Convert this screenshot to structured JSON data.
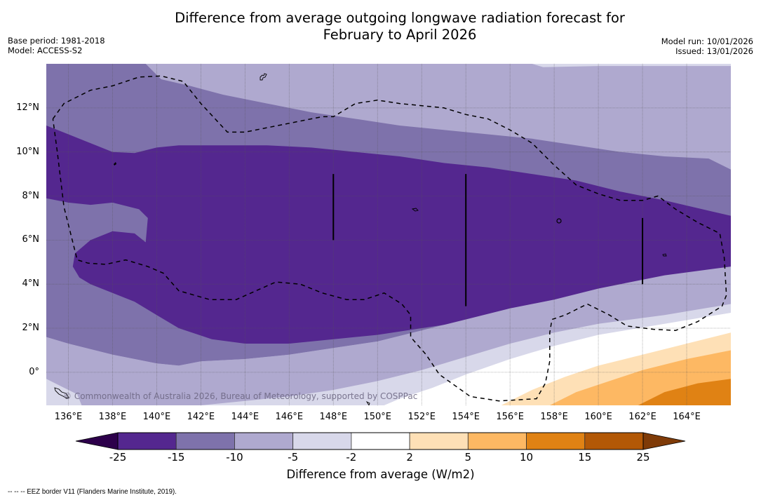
{
  "header": {
    "title_line1": "Difference from average outgoing longwave radiation forecast for",
    "title_line2": "February to April 2026",
    "base_period": "Base period: 1981-2018",
    "model": "Model: ACCESS-S2",
    "model_run": "Model run: 10/01/2026",
    "issued": "Issued: 13/01/2026"
  },
  "map": {
    "lon_range": [
      135.0,
      166.0
    ],
    "lat_range": [
      -1.5,
      14.0
    ],
    "lat_ticks": [
      {
        "value": 12,
        "label": "12°N"
      },
      {
        "value": 10,
        "label": "10°N"
      },
      {
        "value": 8,
        "label": "8°N"
      },
      {
        "value": 6,
        "label": "6°N"
      },
      {
        "value": 4,
        "label": "4°N"
      },
      {
        "value": 2,
        "label": "2°N"
      },
      {
        "value": 0,
        "label": "0°"
      }
    ],
    "lon_ticks": [
      {
        "value": 136,
        "label": "136°E"
      },
      {
        "value": 138,
        "label": "138°E"
      },
      {
        "value": 140,
        "label": "140°E"
      },
      {
        "value": 142,
        "label": "142°E"
      },
      {
        "value": 144,
        "label": "144°E"
      },
      {
        "value": 146,
        "label": "146°E"
      },
      {
        "value": 148,
        "label": "148°E"
      },
      {
        "value": 150,
        "label": "150°E"
      },
      {
        "value": 152,
        "label": "152°E"
      },
      {
        "value": 154,
        "label": "154°E"
      },
      {
        "value": 156,
        "label": "156°E"
      },
      {
        "value": 158,
        "label": "158°E"
      },
      {
        "value": 160,
        "label": "160°E"
      },
      {
        "value": 162,
        "label": "162°E"
      },
      {
        "value": 164,
        "label": "164°E"
      }
    ],
    "copyright": "© Commonwealth of Australia 2026, Bureau of Meteorology, supported by COSPPac",
    "background_level": "-10 to -5",
    "filled_regions": [
      {
        "level": "-5 to -2",
        "color": "#d8d8ea",
        "points": [
          [
            157.0,
            14.0
          ],
          [
            166.0,
            14.0
          ],
          [
            166.0,
            13.9
          ],
          [
            160,
            13.9
          ],
          [
            157.5,
            13.85
          ]
        ]
      },
      {
        "level": "-15 to -10",
        "color": "#7e72ab",
        "points": [
          [
            135.0,
            14.0
          ],
          [
            139.5,
            14.0
          ],
          [
            140.2,
            13.3
          ],
          [
            141.5,
            13.0
          ],
          [
            143,
            12.6
          ],
          [
            145,
            12.2
          ],
          [
            147,
            11.8
          ],
          [
            149,
            11.5
          ],
          [
            151,
            11.2
          ],
          [
            153,
            11.0
          ],
          [
            155,
            10.8
          ],
          [
            157,
            10.6
          ],
          [
            159,
            10.3
          ],
          [
            161,
            10.0
          ],
          [
            163,
            9.8
          ],
          [
            165,
            9.7
          ],
          [
            166,
            9.2
          ],
          [
            166,
            4.8
          ],
          [
            163,
            4.4
          ],
          [
            160,
            3.8
          ],
          [
            158,
            3.3
          ],
          [
            156,
            2.9
          ],
          [
            154,
            2.4
          ],
          [
            152,
            1.9
          ],
          [
            150,
            1.4
          ],
          [
            148,
            1.1
          ],
          [
            146,
            0.8
          ],
          [
            144,
            0.6
          ],
          [
            142,
            0.5
          ],
          [
            141,
            0.3
          ],
          [
            140,
            0.4
          ],
          [
            138,
            0.8
          ],
          [
            136,
            1.3
          ],
          [
            135,
            1.6
          ]
        ]
      },
      {
        "level": "-25 to -15",
        "color": "#54278f",
        "points": [
          [
            135.0,
            11.2
          ],
          [
            136,
            10.8
          ],
          [
            137,
            10.4
          ],
          [
            138,
            10.0
          ],
          [
            139,
            9.95
          ],
          [
            140,
            10.2
          ],
          [
            141,
            10.3
          ],
          [
            143,
            10.3
          ],
          [
            145,
            10.3
          ],
          [
            147,
            10.2
          ],
          [
            149,
            10.0
          ],
          [
            151,
            9.8
          ],
          [
            153,
            9.5
          ],
          [
            155,
            9.3
          ],
          [
            157,
            9.0
          ],
          [
            159,
            8.7
          ],
          [
            161,
            8.2
          ],
          [
            163,
            7.8
          ],
          [
            166,
            7.1
          ],
          [
            166,
            4.7
          ],
          [
            164,
            4.2
          ],
          [
            162,
            3.9
          ],
          [
            160,
            3.6
          ],
          [
            158,
            3.2
          ],
          [
            156,
            2.9
          ],
          [
            155,
            2.6
          ],
          [
            154,
            2.3
          ],
          [
            152,
            2.0
          ],
          [
            150,
            1.7
          ],
          [
            148,
            1.5
          ],
          [
            146,
            1.3
          ],
          [
            144,
            1.3
          ],
          [
            142.5,
            1.5
          ],
          [
            141,
            2.0
          ],
          [
            140,
            2.6
          ],
          [
            139,
            3.2
          ],
          [
            138,
            3.6
          ],
          [
            137,
            4.0
          ],
          [
            136.5,
            4.3
          ],
          [
            136.2,
            4.8
          ],
          [
            136.3,
            5.4
          ],
          [
            137,
            6.0
          ],
          [
            138,
            6.4
          ],
          [
            139,
            6.3
          ],
          [
            139.5,
            5.9
          ],
          [
            139.6,
            7.0
          ],
          [
            139.2,
            7.4
          ],
          [
            138,
            7.7
          ],
          [
            137,
            7.6
          ],
          [
            136,
            7.7
          ],
          [
            135,
            7.9
          ]
        ]
      },
      {
        "level": "-10 to -5 (south)",
        "color": "#afa9cf",
        "points": [
          [
            135,
            1.6
          ],
          [
            136,
            1.3
          ],
          [
            138,
            0.8
          ],
          [
            140,
            0.4
          ],
          [
            141,
            0.3
          ],
          [
            142,
            0.5
          ],
          [
            144,
            0.6
          ],
          [
            146,
            0.8
          ],
          [
            148,
            1.1
          ],
          [
            150,
            1.4
          ],
          [
            152,
            1.9
          ],
          [
            154,
            2.4
          ],
          [
            156,
            2.9
          ],
          [
            158,
            3.3
          ],
          [
            160,
            3.8
          ],
          [
            163,
            4.4
          ],
          [
            166,
            4.8
          ],
          [
            166,
            3.1
          ],
          [
            163,
            2.6
          ],
          [
            160,
            2.2
          ],
          [
            158,
            1.8
          ],
          [
            156,
            1.3
          ],
          [
            154,
            0.7
          ],
          [
            152,
            0.1
          ],
          [
            150,
            -0.4
          ],
          [
            148,
            -0.8
          ],
          [
            146,
            -1.1
          ],
          [
            144,
            -1.3
          ],
          [
            142,
            -1.5
          ],
          [
            135,
            -1.5
          ]
        ]
      },
      {
        "level": "-5 to -2 (south)",
        "color": "#d8d8ea",
        "points": [
          [
            166,
            3.1
          ],
          [
            163,
            2.6
          ],
          [
            160,
            2.2
          ],
          [
            158,
            1.8
          ],
          [
            156,
            1.3
          ],
          [
            154,
            0.7
          ],
          [
            152,
            0.1
          ],
          [
            150,
            -0.4
          ],
          [
            148,
            -0.8
          ],
          [
            146,
            -1.1
          ],
          [
            144,
            -1.3
          ],
          [
            142,
            -1.5
          ],
          [
            166,
            -1.5
          ],
          [
            166,
            2.7
          ]
        ]
      },
      {
        "level": "-5 to -2 (sw)",
        "color": "#d8d8ea",
        "points": [
          [
            135,
            -0.3
          ],
          [
            135.6,
            -0.6
          ],
          [
            136.4,
            -1.0
          ],
          [
            136.6,
            -1.5
          ],
          [
            135,
            -1.5
          ]
        ]
      },
      {
        "level": "-2 to 2",
        "color": "#ffffff",
        "points": [
          [
            166,
            2.7
          ],
          [
            163,
            2.2
          ],
          [
            160,
            1.7
          ],
          [
            158,
            1.2
          ],
          [
            156,
            0.6
          ],
          [
            154,
            -0.1
          ],
          [
            152.5,
            -0.7
          ],
          [
            151,
            -1.2
          ],
          [
            150.3,
            -1.5
          ],
          [
            166,
            -1.5
          ]
        ]
      },
      {
        "level": "2 to 5",
        "color": "#fee0b6",
        "points": [
          [
            166,
            1.8
          ],
          [
            164,
            1.3
          ],
          [
            162,
            0.8
          ],
          [
            160,
            0.3
          ],
          [
            158.5,
            -0.2
          ],
          [
            157,
            -0.8
          ],
          [
            155.6,
            -1.5
          ],
          [
            166,
            -1.5
          ]
        ]
      },
      {
        "level": "5 to 10",
        "color": "#fdb863",
        "points": [
          [
            166,
            1.0
          ],
          [
            164,
            0.6
          ],
          [
            162,
            0.1
          ],
          [
            160.5,
            -0.4
          ],
          [
            159,
            -0.9
          ],
          [
            157.8,
            -1.5
          ],
          [
            166,
            -1.5
          ]
        ]
      },
      {
        "level": "10 to 15",
        "color": "#e08214",
        "points": [
          [
            166,
            -0.3
          ],
          [
            164.5,
            -0.5
          ],
          [
            163,
            -0.9
          ],
          [
            161.8,
            -1.5
          ],
          [
            166,
            -1.5
          ]
        ]
      }
    ],
    "eez_border": [
      [
        135.3,
        11.5
      ],
      [
        135.8,
        12.2
      ],
      [
        137,
        12.8
      ],
      [
        138,
        13.0
      ],
      [
        139.2,
        13.4
      ],
      [
        140.2,
        13.45
      ],
      [
        141.2,
        13.2
      ],
      [
        142,
        12.2
      ],
      [
        143.2,
        10.9
      ],
      [
        144,
        10.9
      ],
      [
        146,
        11.3
      ],
      [
        147.5,
        11.6
      ],
      [
        148,
        11.6
      ],
      [
        149,
        12.2
      ],
      [
        150,
        12.35
      ],
      [
        151,
        12.2
      ],
      [
        152,
        12.1
      ],
      [
        153,
        12.0
      ],
      [
        154,
        11.7
      ],
      [
        155,
        11.5
      ],
      [
        156,
        11.0
      ],
      [
        157,
        10.4
      ],
      [
        158,
        9.4
      ],
      [
        159,
        8.5
      ],
      [
        160,
        8.1
      ],
      [
        161,
        7.8
      ],
      [
        162,
        7.8
      ],
      [
        162.7,
        8.0
      ],
      [
        163.5,
        7.4
      ],
      [
        164.5,
        6.8
      ],
      [
        165.5,
        6.3
      ],
      [
        165.7,
        5.2
      ],
      [
        165.8,
        3.5
      ],
      [
        165.6,
        3.0
      ],
      [
        164.5,
        2.3
      ],
      [
        163.5,
        1.9
      ],
      [
        162.5,
        1.95
      ],
      [
        161.3,
        2.1
      ],
      [
        160.5,
        2.6
      ],
      [
        159.5,
        3.1
      ],
      [
        158.5,
        2.6
      ],
      [
        157.9,
        2.4
      ],
      [
        157.8,
        1.8
      ],
      [
        157.8,
        0.5
      ],
      [
        157.6,
        -0.5
      ],
      [
        157.2,
        -1.2
      ],
      [
        155.5,
        -1.3
      ],
      [
        154.2,
        -1.1
      ],
      [
        153.5,
        -0.6
      ],
      [
        152.8,
        -0.1
      ],
      [
        152.2,
        0.8
      ],
      [
        151.5,
        1.6
      ],
      [
        151.5,
        2.6
      ],
      [
        151.1,
        3.1
      ],
      [
        150.3,
        3.6
      ],
      [
        149.4,
        3.3
      ],
      [
        148.6,
        3.3
      ],
      [
        147.5,
        3.6
      ],
      [
        146.5,
        4.0
      ],
      [
        145.4,
        4.1
      ],
      [
        144.5,
        3.7
      ],
      [
        143.6,
        3.3
      ],
      [
        142.4,
        3.3
      ],
      [
        141.0,
        3.7
      ],
      [
        140.3,
        4.5
      ],
      [
        139.6,
        4.8
      ],
      [
        138.6,
        5.1
      ],
      [
        137.7,
        4.9
      ],
      [
        136.9,
        4.95
      ],
      [
        136.4,
        5.1
      ],
      [
        135.8,
        7.5
      ],
      [
        135.5,
        10
      ],
      [
        135.3,
        11.5
      ]
    ],
    "meridian_lines": [
      {
        "lon": 148,
        "lat_from": 6.0,
        "lat_to": 9.0
      },
      {
        "lon": 154,
        "lat_from": 3.0,
        "lat_to": 9.0
      },
      {
        "lon": 162,
        "lat_from": 4.0,
        "lat_to": 7.0
      }
    ]
  },
  "colorbar": {
    "title": "Difference from average (W/m2)",
    "min_extend_color": "#2d004b",
    "max_extend_color": "#7f3b08",
    "bins": [
      {
        "from": -25,
        "to": -15,
        "color": "#54278f"
      },
      {
        "from": -15,
        "to": -10,
        "color": "#7e72ab"
      },
      {
        "from": -10,
        "to": -5,
        "color": "#afa9cf"
      },
      {
        "from": -5,
        "to": -2,
        "color": "#d8d8ea"
      },
      {
        "from": -2,
        "to": 2,
        "color": "#ffffff"
      },
      {
        "from": 2,
        "to": 5,
        "color": "#fee0b6"
      },
      {
        "from": 5,
        "to": 10,
        "color": "#fdb863"
      },
      {
        "from": 10,
        "to": 15,
        "color": "#e08214"
      },
      {
        "from": 15,
        "to": 25,
        "color": "#b35806"
      }
    ],
    "tick_labels": [
      "-25",
      "-15",
      "-10",
      "-5",
      "-2",
      "2",
      "5",
      "10",
      "15",
      "25"
    ]
  },
  "footnote": "--  --  -- EEZ border V11 (Flanders Marine Institute, 2019)."
}
